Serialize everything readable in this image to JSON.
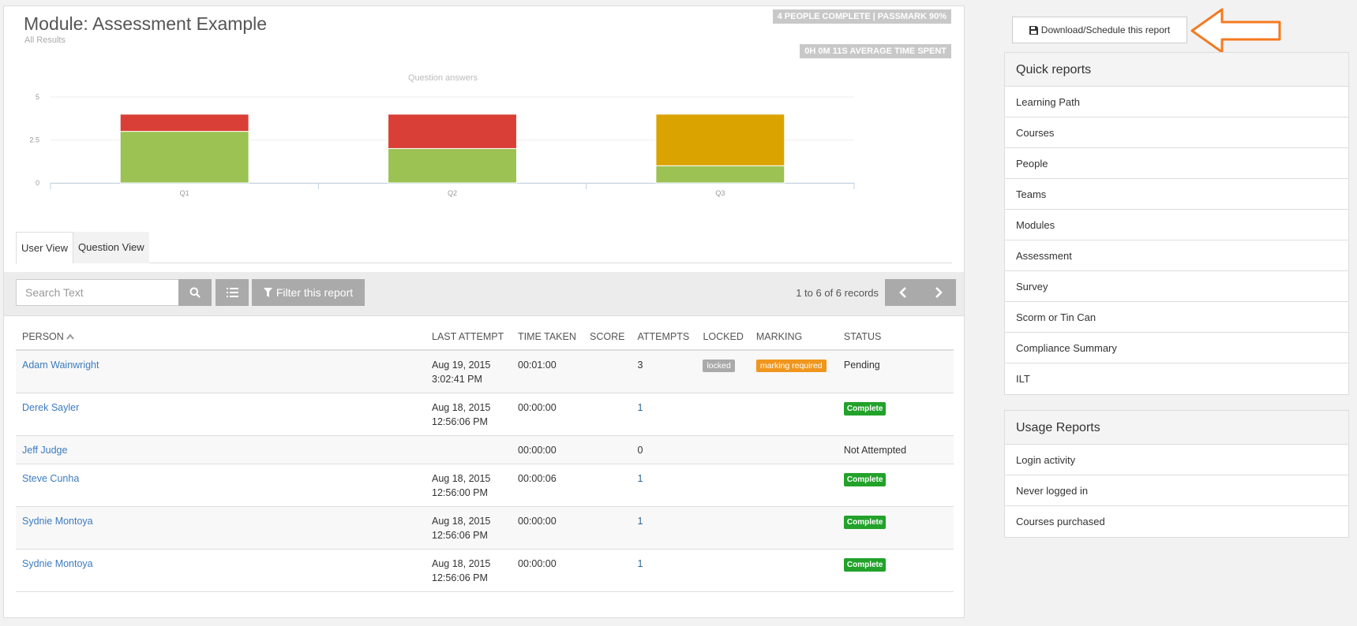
{
  "header": {
    "title": "Module: Assessment Example",
    "subtitle": "All Results",
    "stat_complete": "4 PEOPLE COMPLETE | PASSMARK 90%",
    "stat_time": "0H 0M 11S AVERAGE TIME SPENT"
  },
  "chart_data": {
    "type": "bar",
    "stacked": true,
    "title": "Question answers",
    "categories": [
      "Q1",
      "Q2",
      "Q3"
    ],
    "series": [
      {
        "color": "#9bc253",
        "values": [
          3,
          2,
          1
        ]
      },
      {
        "color": "#d93f36",
        "values": [
          1,
          2,
          0
        ]
      },
      {
        "color": "#dba300",
        "values": [
          0,
          0,
          3
        ]
      }
    ],
    "yticks": [
      "0",
      "2.5",
      "5"
    ],
    "ylim": [
      0,
      5
    ],
    "grid": true
  },
  "tabs": [
    {
      "label": "User View",
      "active": true
    },
    {
      "label": "Question View",
      "active": false
    }
  ],
  "toolbar": {
    "search_placeholder": "Search Text",
    "filter_label": "Filter this report",
    "records": "1 to 6 of 6 records"
  },
  "table": {
    "columns": [
      "PERSON",
      "LAST ATTEMPT",
      "TIME TAKEN",
      "SCORE",
      "ATTEMPTS",
      "LOCKED",
      "MARKING",
      "STATUS"
    ],
    "rows": [
      {
        "person": "Adam Wainwright",
        "date": "Aug 19, 2015",
        "time": "3:02:41 PM",
        "taken": "00:01:00",
        "score": "",
        "attempts": "3",
        "locked": "locked",
        "marking": "marking required",
        "status": "Pending"
      },
      {
        "person": "Derek Sayler",
        "date": "Aug 18, 2015",
        "time": "12:56:06 PM",
        "taken": "00:00:00",
        "score": "",
        "attempts": "1",
        "locked": "",
        "marking": "",
        "status": "Complete"
      },
      {
        "person": "Jeff Judge",
        "date": "",
        "time": "",
        "taken": "00:00:00",
        "score": "",
        "attempts": "0",
        "locked": "",
        "marking": "",
        "status": "Not Attempted"
      },
      {
        "person": "Steve Cunha",
        "date": "Aug 18, 2015",
        "time": "12:56:00 PM",
        "taken": "00:00:06",
        "score": "",
        "attempts": "1",
        "locked": "",
        "marking": "",
        "status": "Complete"
      },
      {
        "person": "Sydnie Montoya",
        "date": "Aug 18, 2015",
        "time": "12:56:06 PM",
        "taken": "00:00:00",
        "score": "",
        "attempts": "1",
        "locked": "",
        "marking": "",
        "status": "Complete"
      },
      {
        "person": "Sydnie Montoya",
        "date": "Aug 18, 2015",
        "time": "12:56:06 PM",
        "taken": "00:00:00",
        "score": "",
        "attempts": "1",
        "locked": "",
        "marking": "",
        "status": "Complete"
      }
    ]
  },
  "sidebar": {
    "download_label": "Download/Schedule this report",
    "arrow_color": "#f47a20",
    "quick_title": "Quick reports",
    "quick_items": [
      "Learning Path",
      "Courses",
      "People",
      "Teams",
      "Modules",
      "Assessment",
      "Survey",
      "Scorm or Tin Can",
      "Compliance Summary",
      "ILT"
    ],
    "usage_title": "Usage Reports",
    "usage_items": [
      "Login activity",
      "Never logged in",
      "Courses purchased"
    ]
  }
}
